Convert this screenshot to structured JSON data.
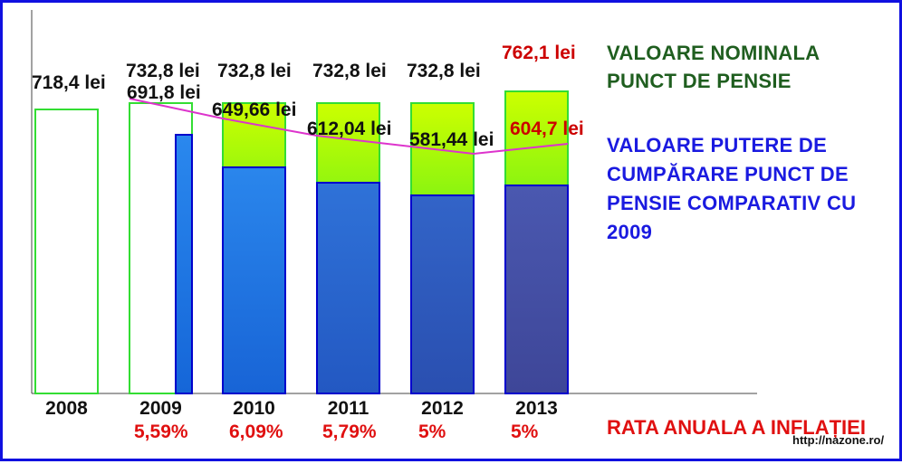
{
  "chart_data": {
    "type": "bar",
    "categories": [
      "2008",
      "2009",
      "2010",
      "2011",
      "2012",
      "2013"
    ],
    "ylim": [
      0,
      800
    ],
    "grid": false,
    "legend_placement": "right",
    "series": [
      {
        "name": "VALOARE NOMINALA PUNCT DE PENSIE",
        "values": [
          718.4,
          732.8,
          732.8,
          732.8,
          732.8,
          762.1
        ],
        "labels": [
          "718,4 lei",
          "732,8 lei",
          "732,8 lei",
          "732,8 lei",
          "732,8 lei",
          "762,1 lei"
        ]
      },
      {
        "name": "VALOARE PUTERE DE CUMPĂRARE PUNCT DE PENSIE COMPARATIV CU 2009",
        "values": [
          null,
          691.8,
          649.66,
          612.04,
          581.44,
          604.7
        ],
        "labels": [
          "",
          "691,8 lei",
          "649,66 lei",
          "612,04 lei",
          "581,44 lei",
          "604,7 lei"
        ]
      }
    ],
    "inflation": {
      "name": "RATA ANUALA A INFLAȚIEI",
      "labels": [
        "",
        "5,59%",
        "6,09%",
        "5,79%",
        "5%",
        "5%"
      ]
    },
    "source": "http://nazone.ro/"
  },
  "colors": {
    "frame": "#1010e0",
    "nominal_outline": "#33dd33",
    "nominal_fill_top": "#ccff00",
    "nominal_fill_bottom": "#00dd33",
    "purchasing_fill": "#1a7ae0",
    "purchasing_outline": "#0000cc",
    "trend_line": "#dd33cc",
    "legend_nominal": "#1f5e1f",
    "legend_purchasing": "#1a1ae0",
    "inflation_text": "#e01010",
    "highlight_label": "#cc0000"
  }
}
